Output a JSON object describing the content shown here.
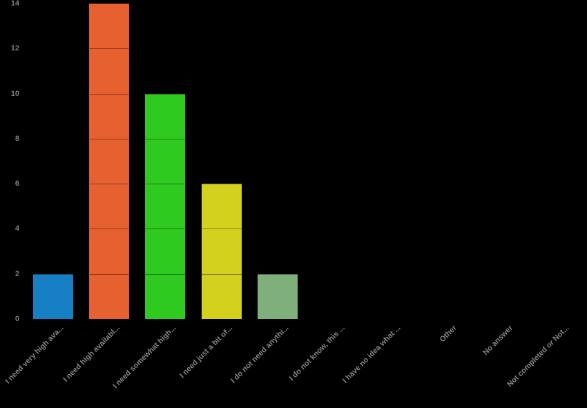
{
  "chart_data": {
    "type": "bar",
    "title": "",
    "xlabel": "",
    "ylabel": "",
    "categories": [
      "I need very high ava...",
      "I need high availabl...",
      "I need somewhat high...",
      "I need just a bit of...",
      "I do not need anythi...",
      "I do not know, this ...",
      "I have no idea what ...",
      "Other",
      "No answer",
      "Not completed or Not..."
    ],
    "values": [
      2,
      14,
      10,
      6,
      2,
      0,
      0,
      0,
      0,
      0
    ],
    "bar_colors": [
      "#1780c4",
      "#e66030",
      "#2fca20",
      "#d3d11e",
      "#7faf7b",
      "#1780c4",
      "#e66030",
      "#2fca20",
      "#d3d11e",
      "#7faf7b"
    ],
    "yticks": [
      0,
      2,
      4,
      6,
      8,
      10,
      12,
      14
    ],
    "ylim": [
      0,
      14
    ],
    "grid": true,
    "legend": null,
    "background_color": "#000000",
    "axis_text_color": "#7f7f7f"
  }
}
